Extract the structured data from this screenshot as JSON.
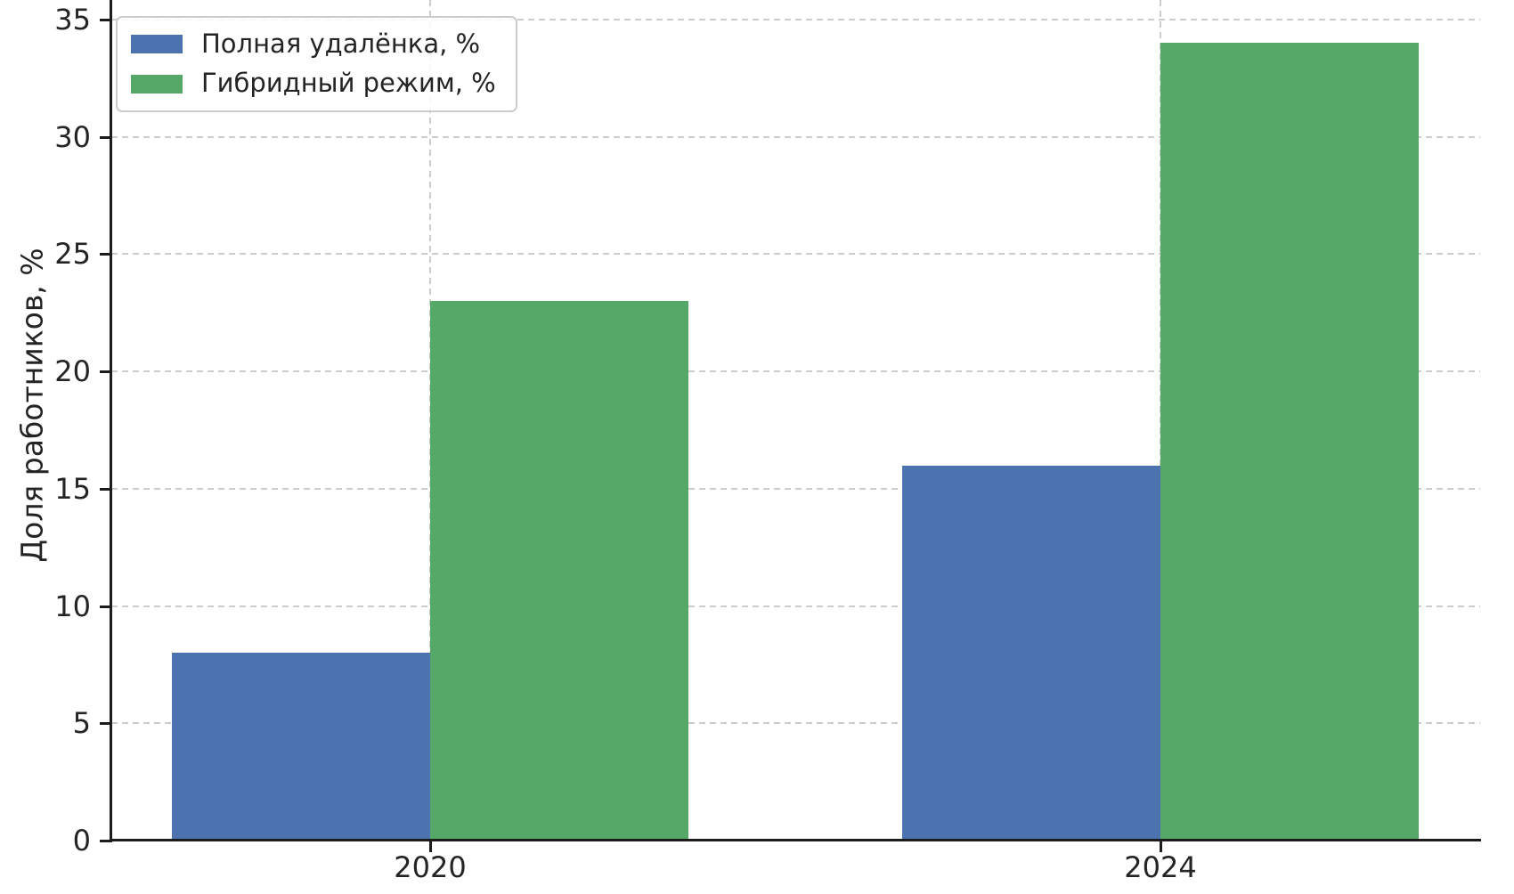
{
  "chart_data": {
    "type": "bar",
    "title": "",
    "xlabel": "",
    "ylabel": "Доля работников, %",
    "categories": [
      "2020",
      "2024"
    ],
    "series": [
      {
        "name": "Полная удалёнка, %",
        "color": "#4C72B0",
        "values": [
          8,
          16
        ]
      },
      {
        "name": "Гибридный режим, %",
        "color": "#55A868",
        "values": [
          23,
          34
        ]
      }
    ],
    "yticks": [
      0,
      5,
      10,
      15,
      20,
      25,
      30,
      35
    ],
    "ylim": [
      0,
      35.8
    ],
    "grid": true,
    "grid_style": "dashed",
    "grid_axes": "both",
    "legend_position": "upper-left",
    "legend": [
      "Полная удалёнка, %",
      "Гибридный режим, %"
    ],
    "colors": {
      "bar_blue": "#4C72B0",
      "bar_green": "#55A868",
      "grid": "#cccccc",
      "spine": "#1c1c1c",
      "text": "#242424",
      "legend_border": "#cccccc",
      "background": "#ffffff"
    }
  }
}
